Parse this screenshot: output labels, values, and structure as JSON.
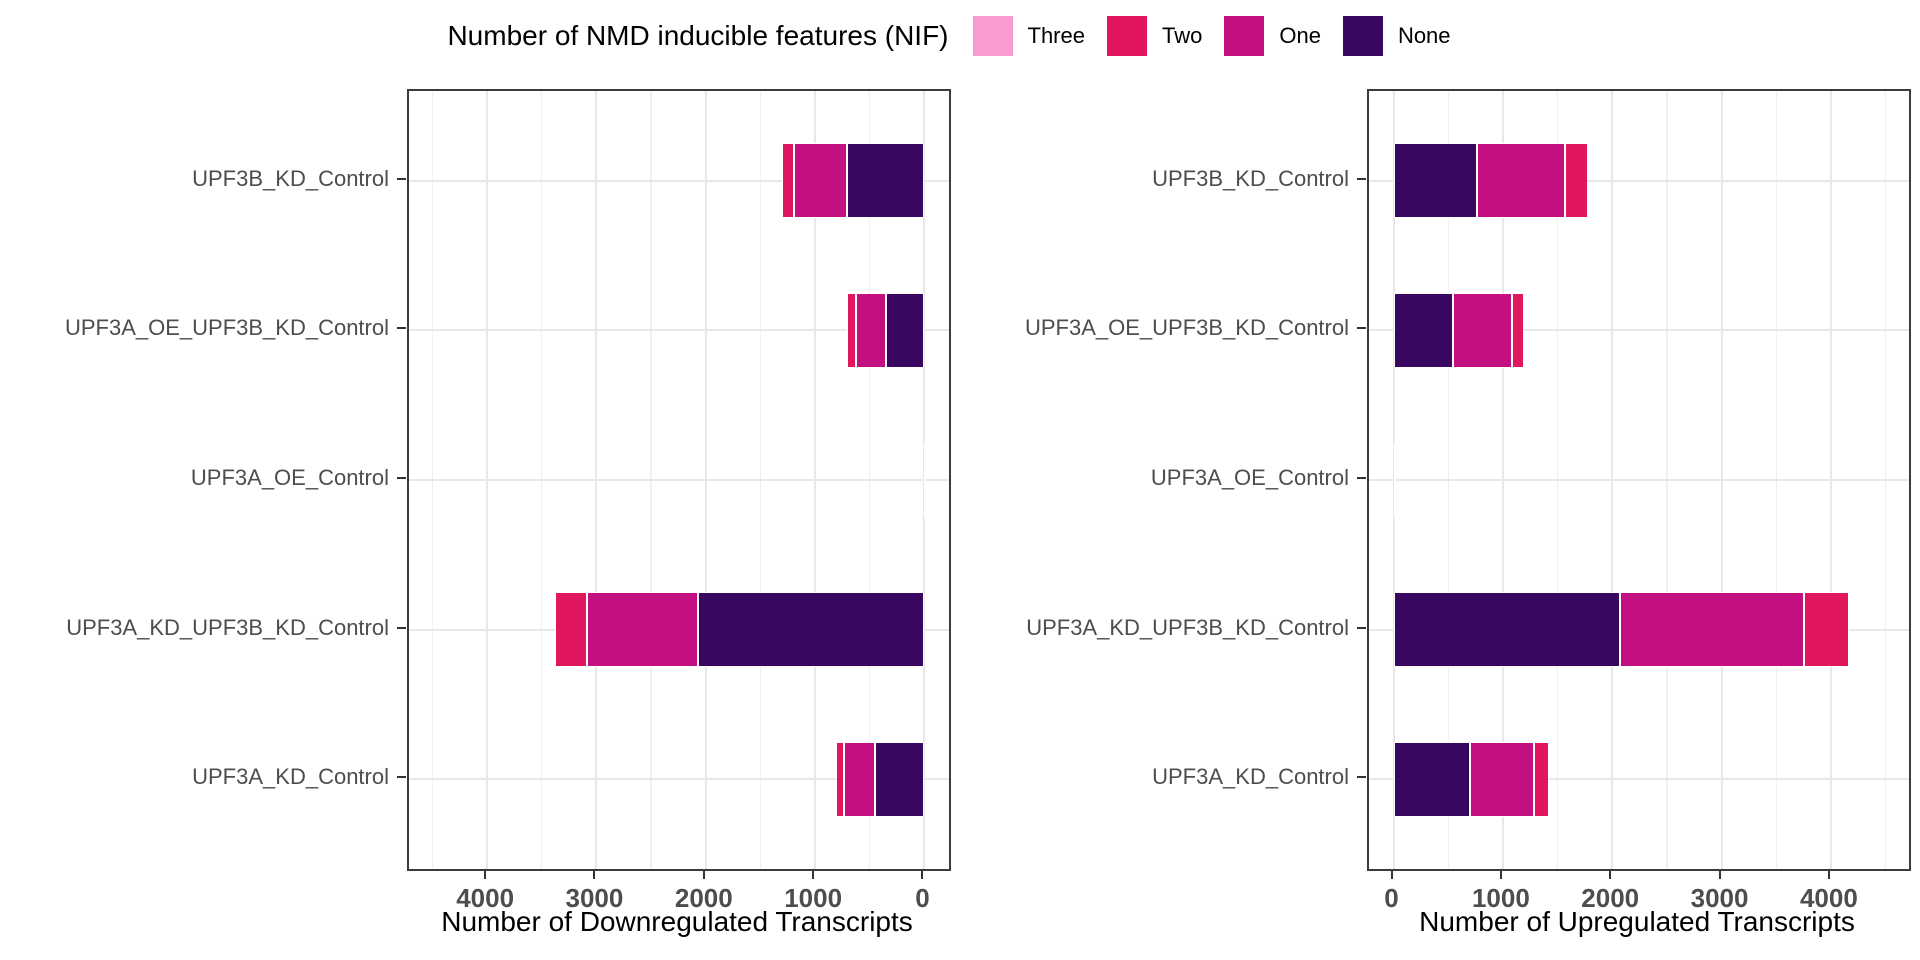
{
  "figure": {
    "background": "#ffffff"
  },
  "legend": {
    "title": "Number of NMD inducible features (NIF)",
    "position": "top",
    "entries": [
      {
        "label": "Three",
        "color": "#FA9BD0"
      },
      {
        "label": "Two",
        "color": "#E0175F"
      },
      {
        "label": "One",
        "color": "#C40F80"
      },
      {
        "label": "None",
        "color": "#390761"
      }
    ]
  },
  "colors": {
    "panel_border": "#3b3b3b",
    "grid_major": "#e8e8e8",
    "grid_minor": "#f0f0f0",
    "tick_mark": "#333333",
    "tick_text": "#4d4d4d",
    "axis_title_text": "#000000"
  },
  "chart_data": [
    {
      "type": "bar",
      "stacked": true,
      "orientation": "horizontal",
      "panel": "left",
      "xlabel": "Number of Downregulated Transcripts",
      "x_reversed": true,
      "xlim": [
        0,
        4490
      ],
      "expansion": 0.05,
      "grid": true,
      "legend_position": "top",
      "x_ticks": [
        4000,
        3000,
        2000,
        1000,
        0
      ],
      "x_tick_labels": [
        "4000",
        "3000",
        "2000",
        "1000",
        "0"
      ],
      "categories_top_to_bottom": [
        "UPF3B_KD_Control",
        "UPF3A_OE_UPF3B_KD_Control",
        "UPF3A_OE_Control",
        "UPF3A_KD_UPF3B_KD_Control",
        "UPF3A_KD_Control"
      ],
      "stack_order_from_zero": [
        "None",
        "One",
        "Two",
        "Three"
      ],
      "series": [
        {
          "name": "Three",
          "values": [
            0,
            0,
            0,
            0,
            0
          ]
        },
        {
          "name": "Two",
          "values": [
            110,
            80,
            1,
            290,
            65
          ]
        },
        {
          "name": "One",
          "values": [
            480,
            280,
            2,
            1015,
            290
          ]
        },
        {
          "name": "None",
          "values": [
            710,
            350,
            4,
            2075,
            450
          ]
        }
      ]
    },
    {
      "type": "bar",
      "stacked": true,
      "orientation": "horizontal",
      "panel": "right",
      "xlabel": "Number of Upregulated Transcripts",
      "x_reversed": false,
      "xlim": [
        0,
        4490
      ],
      "expansion": 0.05,
      "grid": true,
      "legend_position": "top",
      "x_ticks": [
        0,
        1000,
        2000,
        3000,
        4000
      ],
      "x_tick_labels": [
        "0",
        "1000",
        "2000",
        "3000",
        "4000"
      ],
      "categories_top_to_bottom": [
        "UPF3B_KD_Control",
        "UPF3A_OE_UPF3B_KD_Control",
        "UPF3A_OE_Control",
        "UPF3A_KD_UPF3B_KD_Control",
        "UPF3A_KD_Control"
      ],
      "stack_order_from_zero": [
        "None",
        "One",
        "Two",
        "Three"
      ],
      "series": [
        {
          "name": "Three",
          "values": [
            0,
            0,
            0,
            0,
            0
          ]
        },
        {
          "name": "Two",
          "values": [
            215,
            110,
            1,
            410,
            140
          ]
        },
        {
          "name": "One",
          "values": [
            805,
            535,
            2,
            1680,
            590
          ]
        },
        {
          "name": "None",
          "values": [
            760,
            545,
            4,
            2075,
            695
          ]
        }
      ]
    }
  ]
}
